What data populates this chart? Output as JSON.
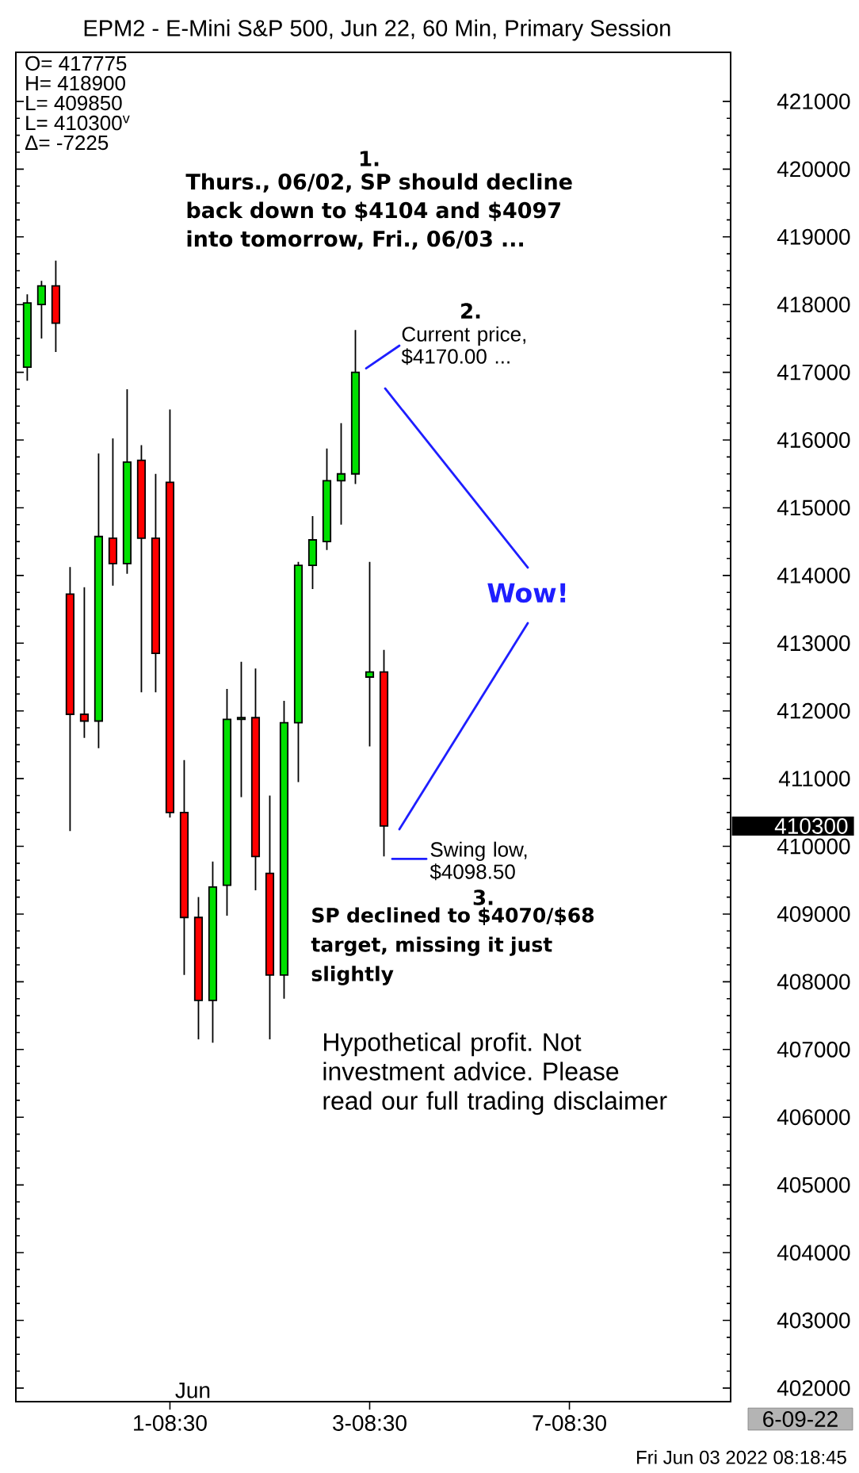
{
  "chart_data": {
    "type": "candlestick",
    "title": "EPM2 - E-Mini S&P 500, Jun 22, 60 Min, Primary Session",
    "categories": [
      null,
      null,
      null,
      null,
      null,
      null,
      null,
      null,
      null,
      null,
      "1-08:30",
      null,
      null,
      null,
      null,
      null,
      null,
      null,
      null,
      null,
      null,
      null,
      null,
      null,
      "3-08:30",
      null,
      null,
      null,
      null,
      null,
      null,
      null,
      null,
      null,
      null,
      null,
      null,
      null,
      "7-08:30",
      null,
      null,
      null,
      null,
      null,
      null,
      null,
      null,
      null,
      null,
      null
    ],
    "ohlc": [
      [
        417075,
        418150,
        416875,
        418025
      ],
      [
        418000,
        418350,
        417500,
        418275
      ],
      [
        418275,
        418650,
        417300,
        417725
      ],
      [
        413725,
        414125,
        410225,
        411950
      ],
      [
        411950,
        413825,
        411600,
        411850
      ],
      [
        411850,
        415800,
        411450,
        414575
      ],
      [
        414550,
        416025,
        413850,
        414175
      ],
      [
        414175,
        416750,
        414025,
        415675
      ],
      [
        415700,
        415925,
        412275,
        414550
      ],
      [
        414550,
        415500,
        412275,
        412850
      ],
      [
        415375,
        416450,
        410425,
        410500
      ],
      [
        410500,
        411275,
        408100,
        408950
      ],
      [
        408950,
        409250,
        407150,
        407725
      ],
      [
        407725,
        409775,
        407100,
        409400
      ],
      [
        409425,
        412325,
        408975,
        411875
      ],
      [
        411875,
        412725,
        410725,
        411900
      ],
      [
        411900,
        412625,
        409350,
        409850
      ],
      [
        409600,
        410750,
        407150,
        408100
      ],
      [
        408100,
        412150,
        407750,
        411825
      ],
      [
        411825,
        414200,
        410950,
        414150
      ],
      [
        414150,
        414875,
        413800,
        414525
      ],
      [
        414500,
        415875,
        414375,
        415400
      ],
      [
        415400,
        416250,
        414750,
        415500
      ],
      [
        415500,
        417625,
        415350,
        417000
      ],
      [
        412500,
        414200,
        411475,
        412575
      ],
      [
        412575,
        412900,
        409850,
        410300
      ],
      null,
      null,
      null,
      null,
      null,
      null,
      null,
      null,
      null,
      null,
      null,
      null,
      null,
      null,
      null,
      null,
      null,
      null,
      null,
      null,
      null,
      null,
      null,
      null
    ],
    "colors": [
      "#00e000",
      "#00e000",
      "#ff0000",
      "#ff0000",
      "#ff0000",
      "#00e000",
      "#ff0000",
      "#00e000",
      "#ff0000",
      "#ff0000",
      "#ff0000",
      "#ff0000",
      "#ff0000",
      "#00e000",
      "#00e000",
      "#00e000",
      "#ff0000",
      "#ff0000",
      "#00e000",
      "#00e000",
      "#00e000",
      "#00e000",
      "#00e000",
      "#00e000",
      "#00e000",
      "#ff0000",
      null,
      null,
      null,
      null,
      null,
      null,
      null,
      null,
      null,
      null,
      null,
      null,
      null,
      null,
      null,
      null,
      null,
      null,
      null,
      null,
      null,
      null,
      null,
      null
    ],
    "ylim": [
      401800,
      421725
    ],
    "yticks": [
      402000,
      403000,
      404000,
      405000,
      406000,
      407000,
      408000,
      409000,
      410000,
      411000,
      412000,
      413000,
      414000,
      415000,
      416000,
      417000,
      418000,
      419000,
      420000,
      421000
    ],
    "annotations": [
      "O= 417775",
      "H= 418900",
      "L= 409850",
      "L= 410300$^{v}$",
      "Δ= -7225",
      "1.",
      "Thurs., 06/02, SP should decline back down to $4104 and $4097 into tomorrow, Fri., 06/03 ...",
      "2.",
      "Current price, $4170.00 ...",
      "Wow!",
      "Swing low, $4098.50",
      "3.",
      "SP declined to $4070/$68 target, missing it just slightly",
      "Hypothetical profit. Not investment advice. Please read our full trading disclaimer",
      "Jun",
      "410300",
      "6-09-22",
      "Fri Jun 03 2022 08:18:45"
    ]
  }
}
